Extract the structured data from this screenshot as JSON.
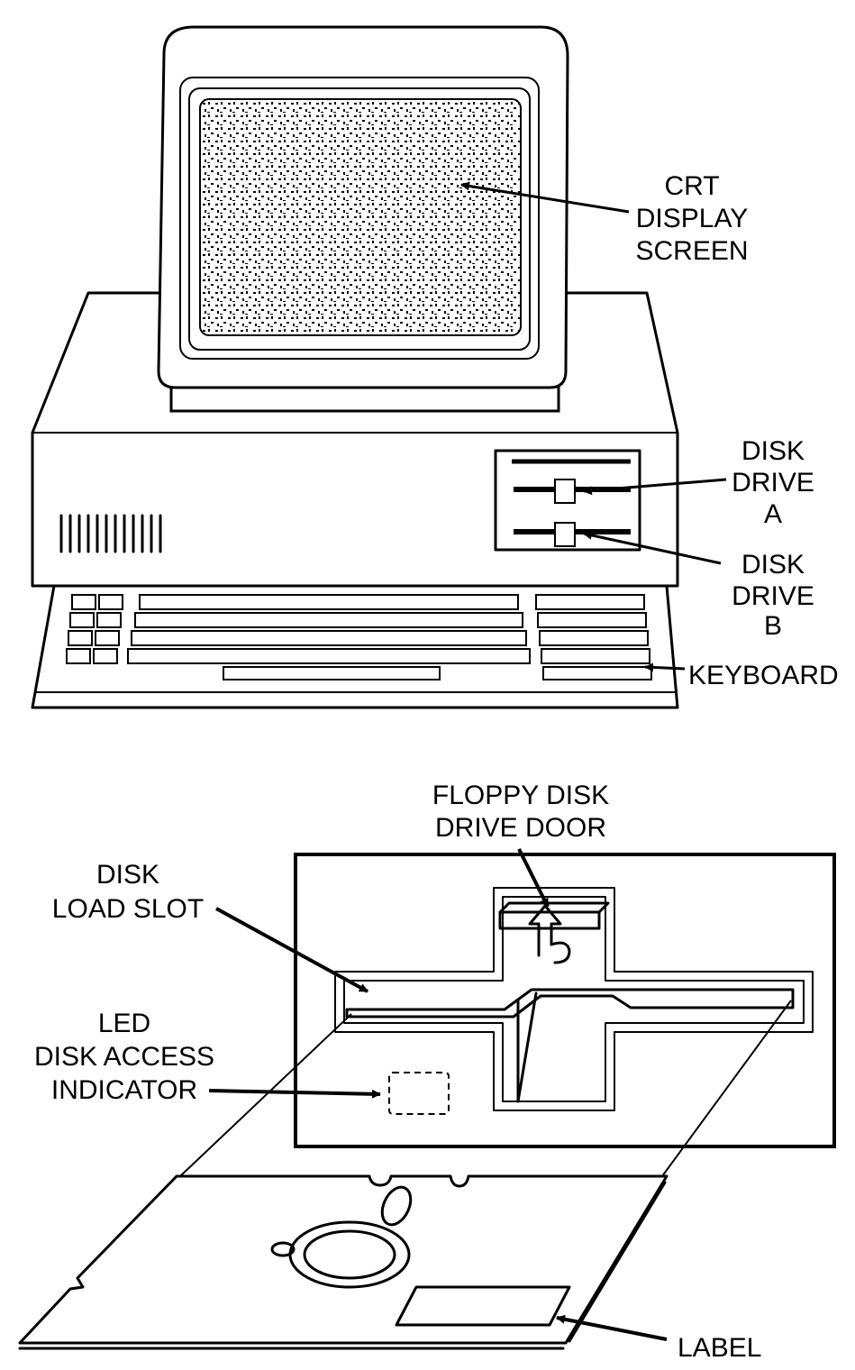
{
  "labels": {
    "crt": [
      "CRT",
      "DISPLAY",
      "SCREEN"
    ],
    "drive_a": [
      "DISK",
      "DRIVE",
      "A"
    ],
    "drive_b": [
      "DISK",
      "DRIVE",
      "B"
    ],
    "keyboard": "KEYBOARD",
    "door": [
      "FLOPPY DISK",
      "DRIVE DOOR"
    ],
    "load_slot": [
      "DISK",
      "LOAD SLOT"
    ],
    "led": [
      "LED",
      "DISK ACCESS",
      "INDICATOR"
    ],
    "label": "LABEL"
  }
}
